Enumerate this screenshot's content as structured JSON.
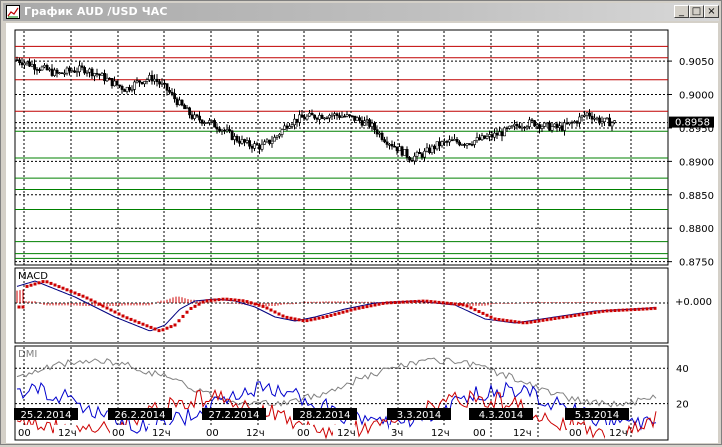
{
  "window": {
    "title": "График AUD /USD  ЧАС",
    "buttons": {
      "minimize": "_",
      "maximize": "□",
      "close": "×"
    }
  },
  "price_panel": {
    "y_range": [
      0.8745,
      0.9095
    ],
    "tick_labels": [
      "0.9050",
      "0.9000",
      "0.8958",
      "0.8950",
      "0.8900",
      "0.8850",
      "0.8800",
      "0.8750"
    ],
    "tick_values": [
      0.905,
      0.9,
      0.8958,
      0.895,
      0.89,
      0.885,
      0.88,
      0.875
    ],
    "current_price": "0.8958",
    "current_value": 0.8958,
    "resistance_lines": [
      0.9072,
      0.9055,
      0.9022,
      0.8975
    ],
    "support_lines": [
      0.8945,
      0.8905,
      0.8875,
      0.8858,
      0.8828,
      0.878,
      0.8762,
      0.8755
    ],
    "colors": {
      "resistance": "#c00000",
      "support": "#008000",
      "candles": "#000000",
      "grid": "#000000"
    }
  },
  "macd_panel": {
    "label": "MACD",
    "zero_label": "+0.000",
    "colors": {
      "signal_dots": "#cc0000",
      "macd_line": "#000080",
      "histogram": "#cc0000"
    }
  },
  "dmi_panel": {
    "label": "DMI",
    "tick_labels": [
      "40",
      "20"
    ],
    "tick_values": [
      40,
      20
    ],
    "y_range": [
      0,
      52
    ],
    "colors": {
      "adx": "#808080",
      "plus_di": "#0000cc",
      "minus_di": "#cc0000"
    }
  },
  "time_axis": {
    "dates": [
      "25.2.2014",
      "26.2.2014",
      "27.2.2014",
      "28.2.2014",
      "3.3.2014",
      "4.3.2014",
      "5.3.2014"
    ],
    "hour_labels": [
      [
        "00",
        "12ч"
      ],
      [
        "00",
        "12ч"
      ],
      [
        "00",
        "12ч"
      ],
      [
        "00",
        "12ч"
      ],
      [
        "3ч",
        "12ч"
      ],
      [
        "00",
        "12ч"
      ],
      [
        "00",
        "12ч"
      ]
    ]
  },
  "chart_data": {
    "type": "candlestick",
    "title": "График AUD /USD  ЧАС",
    "x_labels": [
      "25.2.2014",
      "26.2.2014",
      "27.2.2014",
      "28.2.2014",
      "3.3.2014",
      "4.3.2014",
      "5.3.2014"
    ],
    "ylim": [
      0.8745,
      0.9095
    ],
    "price_path": [
      [
        0,
        0.9052
      ],
      [
        6,
        0.9045
      ],
      [
        12,
        0.9038
      ],
      [
        18,
        0.903
      ],
      [
        24,
        0.9036
      ],
      [
        30,
        0.9038
      ],
      [
        36,
        0.903
      ],
      [
        42,
        0.9018
      ],
      [
        48,
        0.9008
      ],
      [
        54,
        0.902
      ],
      [
        60,
        0.9025
      ],
      [
        66,
        0.9008
      ],
      [
        72,
        0.8985
      ],
      [
        78,
        0.8965
      ],
      [
        84,
        0.896
      ],
      [
        90,
        0.895
      ],
      [
        96,
        0.8935
      ],
      [
        102,
        0.8925
      ],
      [
        108,
        0.8922
      ],
      [
        114,
        0.8935
      ],
      [
        120,
        0.8958
      ],
      [
        126,
        0.8965
      ],
      [
        132,
        0.8968
      ],
      [
        138,
        0.897
      ],
      [
        144,
        0.8968
      ],
      [
        150,
        0.8963
      ],
      [
        156,
        0.8955
      ],
      [
        162,
        0.8935
      ],
      [
        168,
        0.892
      ],
      [
        174,
        0.8905
      ],
      [
        180,
        0.8912
      ],
      [
        186,
        0.8925
      ],
      [
        192,
        0.893
      ],
      [
        198,
        0.8928
      ],
      [
        204,
        0.8932
      ],
      [
        210,
        0.8938
      ],
      [
        216,
        0.8945
      ],
      [
        222,
        0.8955
      ],
      [
        228,
        0.8958
      ],
      [
        234,
        0.8952
      ],
      [
        240,
        0.895
      ],
      [
        246,
        0.8958
      ],
      [
        252,
        0.8972
      ],
      [
        258,
        0.896
      ],
      [
        264,
        0.8958
      ]
    ]
  }
}
